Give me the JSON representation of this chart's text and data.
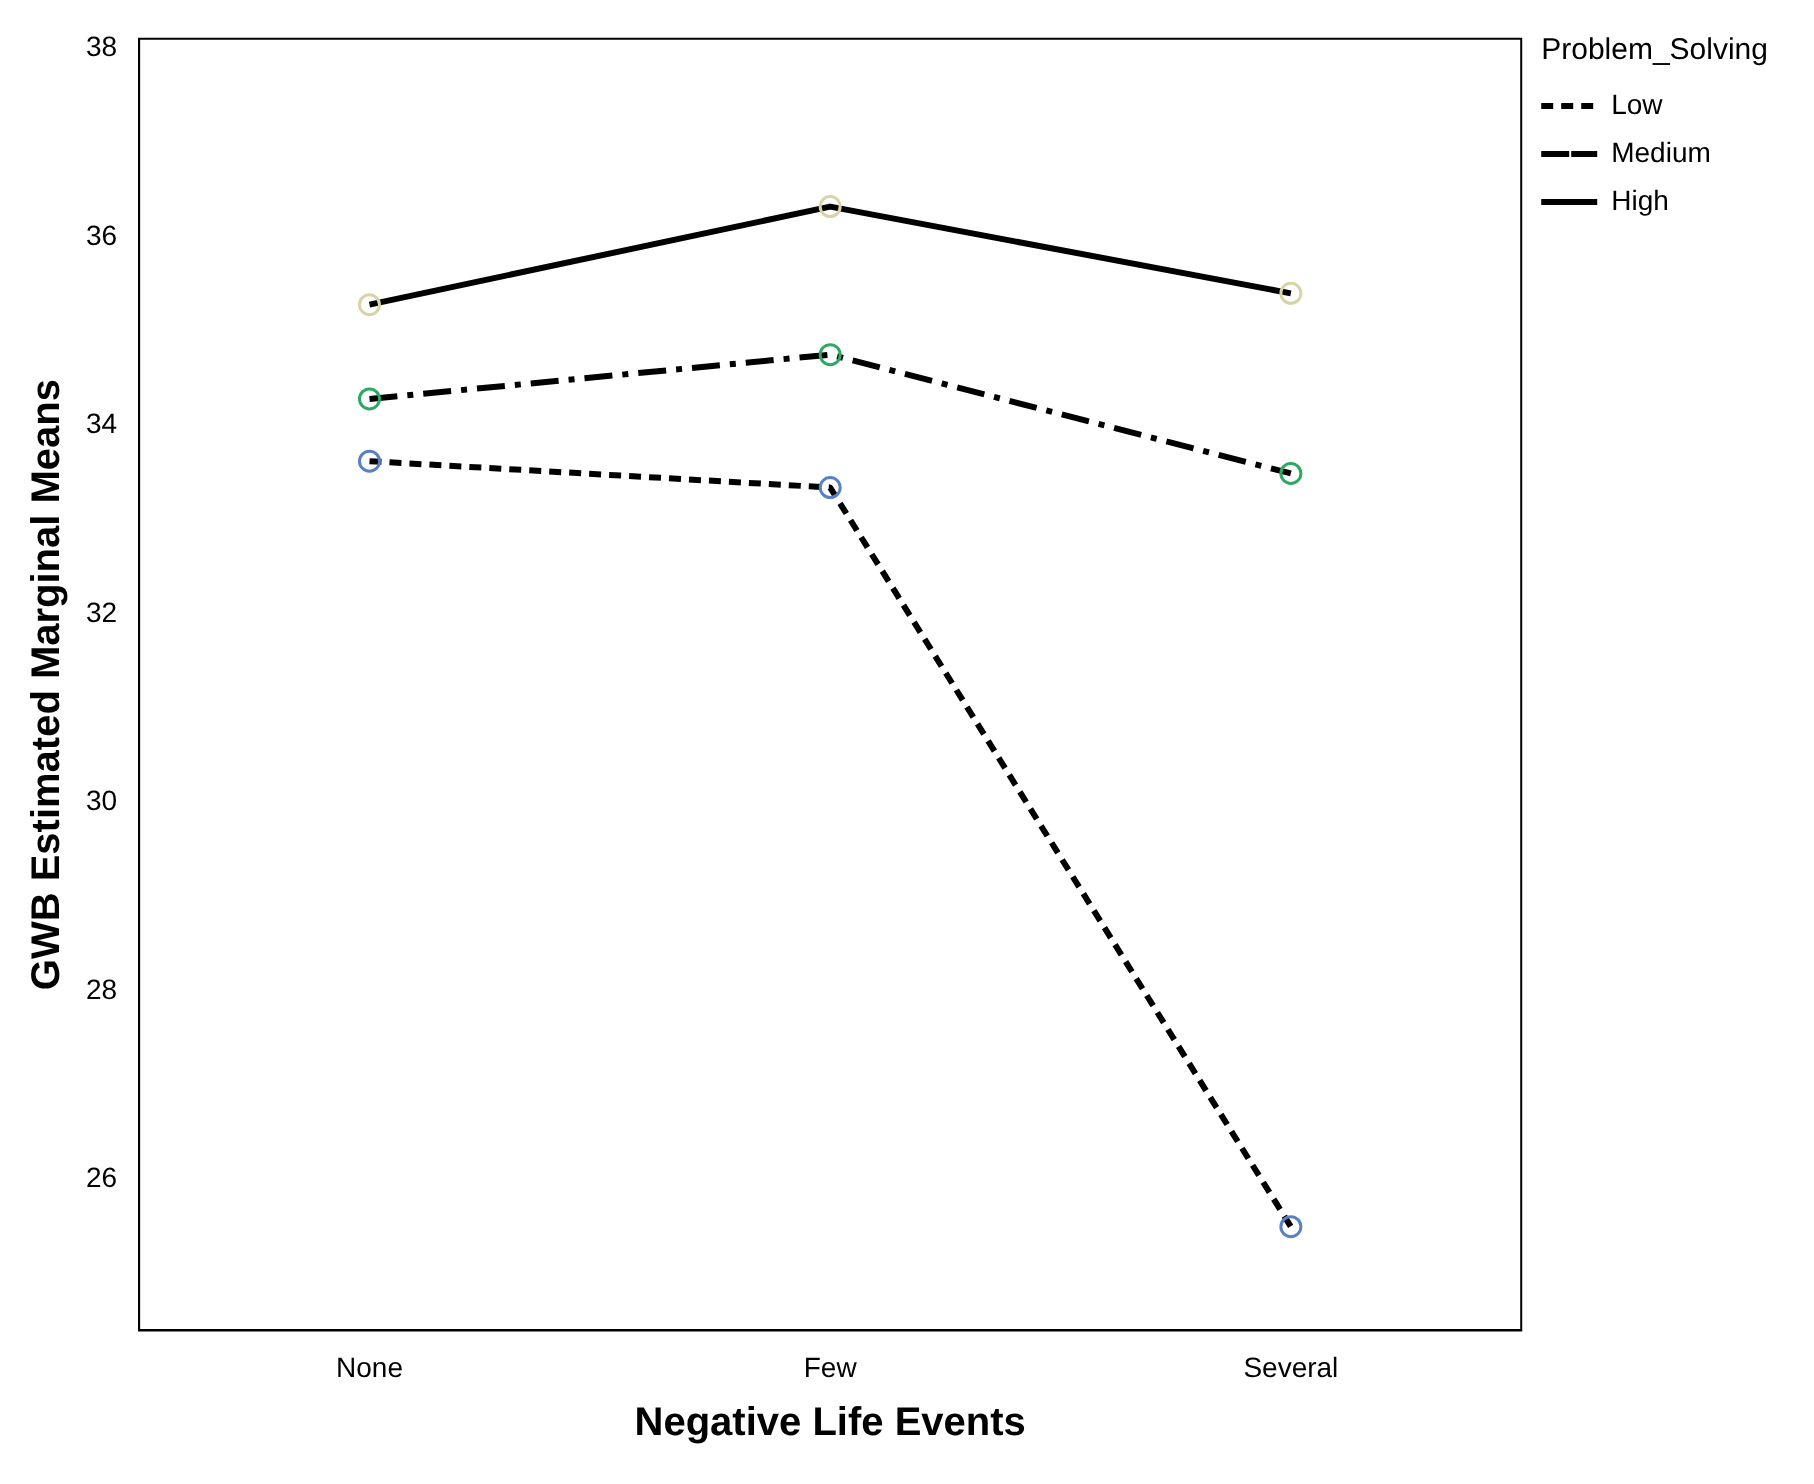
{
  "chart_data": {
    "type": "line",
    "xlabel": "Negative Life Events",
    "ylabel": "GWB Estimated Marginal Means",
    "legend_title": "Problem_Solving",
    "categories": [
      "None",
      "Few",
      "Several"
    ],
    "series": [
      {
        "name": "Low",
        "color": "#000000",
        "colors": [
          "#5b7fc4",
          "#5b7fc4",
          "#5b7fc4"
        ],
        "line_style": "dotted",
        "values": [
          33.62,
          33.34,
          25.5
        ]
      },
      {
        "name": "Medium",
        "color": "#000000",
        "colors": [
          "#2ea862",
          "#2ea862",
          "#2ea862"
        ],
        "line_style": "dashed",
        "values": [
          34.28,
          34.75,
          33.49
        ]
      },
      {
        "name": "High",
        "color": "#000000",
        "colors": [
          "#d8d4a8",
          "#d8d4a8",
          "#d8d4a8"
        ],
        "line_style": "solid",
        "values": [
          35.28,
          36.32,
          35.4
        ]
      }
    ],
    "ylim": [
      24.4,
      38.1
    ],
    "yticks": [
      26,
      28,
      30,
      32,
      34,
      36,
      38
    ],
    "grid": false,
    "legend": "top right",
    "marker": "circle"
  }
}
